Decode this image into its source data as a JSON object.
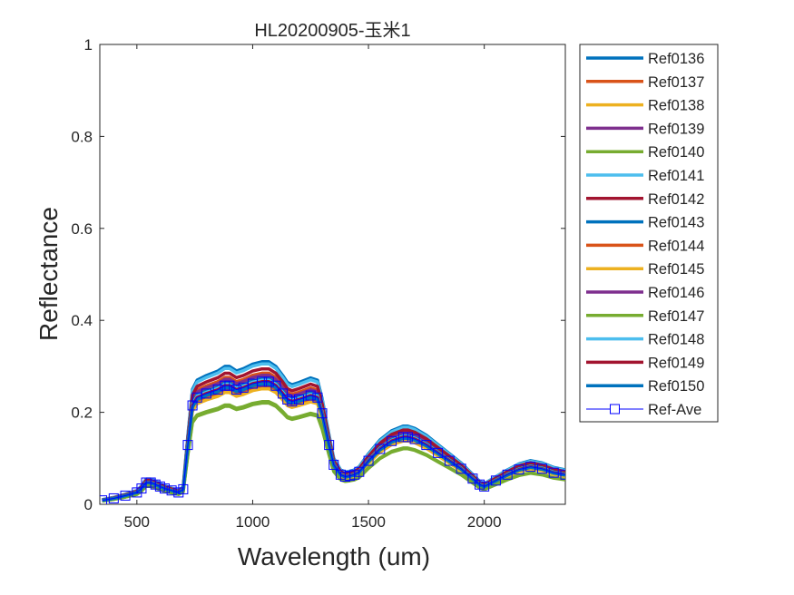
{
  "chart_data": {
    "type": "line",
    "title": "HL20200905-玉米1",
    "xlabel": "Wavelength (um)",
    "ylabel": "Reflectance",
    "xlim": [
      340,
      2350
    ],
    "ylim": [
      0,
      1
    ],
    "xticks": [
      500,
      1000,
      1500,
      2000
    ],
    "xtick_labels": [
      "500",
      "1000",
      "1500",
      "2000"
    ],
    "yticks": [
      0,
      0.2,
      0.4,
      0.6,
      0.8,
      1
    ],
    "ytick_labels": [
      "0",
      "0.2",
      "0.4",
      "0.6",
      "0.8",
      "1"
    ],
    "grid": false,
    "legend_position": "outside-right",
    "x": [
      350,
      400,
      450,
      500,
      520,
      540,
      560,
      580,
      600,
      620,
      650,
      680,
      700,
      720,
      740,
      760,
      800,
      850,
      880,
      900,
      930,
      960,
      1000,
      1040,
      1070,
      1100,
      1130,
      1150,
      1170,
      1200,
      1250,
      1280,
      1300,
      1330,
      1350,
      1380,
      1400,
      1420,
      1440,
      1460,
      1500,
      1550,
      1600,
      1650,
      1670,
      1700,
      1750,
      1800,
      1850,
      1900,
      1950,
      1980,
      2000,
      2050,
      2100,
      2150,
      2200,
      2250,
      2300,
      2350
    ],
    "series": [
      {
        "name": "Ref0136",
        "color": "#0072BD",
        "width": 3.5,
        "scale": 1.0
      },
      {
        "name": "Ref0137",
        "color": "#D95319",
        "width": 3.5,
        "scale": 0.92
      },
      {
        "name": "Ref0138",
        "color": "#EDB120",
        "width": 3.5,
        "scale": 0.9
      },
      {
        "name": "Ref0139",
        "color": "#7E2F8E",
        "width": 3.5,
        "scale": 0.905
      },
      {
        "name": "Ref0140",
        "color": "#77AC30",
        "width": 3.5,
        "scale": 0.71
      },
      {
        "name": "Ref0141",
        "color": "#4DBEEE",
        "width": 3.5,
        "scale": 0.985
      },
      {
        "name": "Ref0142",
        "color": "#A2142F",
        "width": 3.5,
        "scale": 0.95
      },
      {
        "name": "Ref0143",
        "color": "#0072BD",
        "width": 3.5,
        "scale": 0.88
      },
      {
        "name": "Ref0144",
        "color": "#D95319",
        "width": 3.5,
        "scale": 0.83
      },
      {
        "name": "Ref0145",
        "color": "#EDB120",
        "width": 3.5,
        "scale": 0.81
      },
      {
        "name": "Ref0146",
        "color": "#7E2F8E",
        "width": 3.5,
        "scale": 0.85
      },
      {
        "name": "Ref0147",
        "color": "#77AC30",
        "width": 3.5,
        "scale": 0.72
      },
      {
        "name": "Ref0148",
        "color": "#4DBEEE",
        "width": 3.5,
        "scale": 0.87
      },
      {
        "name": "Ref0149",
        "color": "#A2142F",
        "width": 3.5,
        "scale": 0.86
      },
      {
        "name": "Ref0150",
        "color": "#0072BD",
        "width": 3.5,
        "scale": 0.845
      },
      {
        "name": "Ref-Ave",
        "color": "#0000FF",
        "width": 1,
        "scale": 0.86,
        "marker": "square"
      }
    ],
    "base_values": [
      0.01,
      0.015,
      0.022,
      0.03,
      0.04,
      0.055,
      0.055,
      0.05,
      0.045,
      0.04,
      0.035,
      0.03,
      0.038,
      0.15,
      0.25,
      0.27,
      0.28,
      0.29,
      0.3,
      0.3,
      0.29,
      0.295,
      0.305,
      0.31,
      0.31,
      0.3,
      0.28,
      0.265,
      0.26,
      0.265,
      0.275,
      0.27,
      0.23,
      0.15,
      0.1,
      0.075,
      0.07,
      0.072,
      0.075,
      0.082,
      0.11,
      0.14,
      0.16,
      0.17,
      0.17,
      0.165,
      0.15,
      0.13,
      0.11,
      0.09,
      0.065,
      0.05,
      0.045,
      0.06,
      0.075,
      0.088,
      0.095,
      0.09,
      0.08,
      0.075
    ]
  }
}
